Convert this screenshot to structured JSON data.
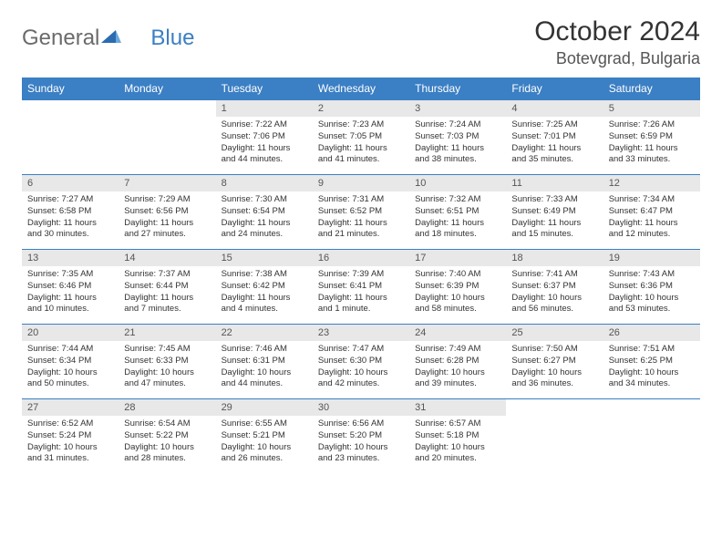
{
  "logo": {
    "general": "General",
    "blue": "Blue"
  },
  "title": "October 2024",
  "location": "Botevgrad, Bulgaria",
  "day_headers": [
    "Sunday",
    "Monday",
    "Tuesday",
    "Wednesday",
    "Thursday",
    "Friday",
    "Saturday"
  ],
  "colors": {
    "header_bg": "#3b7fc4",
    "header_text": "#ffffff",
    "daynum_bg": "#e8e8e8",
    "cell_border": "#3b7fc4",
    "logo_gray": "#6b6b6b",
    "logo_blue": "#3b7fc4"
  },
  "weeks": [
    [
      {
        "empty": true
      },
      {
        "empty": true
      },
      {
        "num": "1",
        "sunrise": "Sunrise: 7:22 AM",
        "sunset": "Sunset: 7:06 PM",
        "daylight": "Daylight: 11 hours and 44 minutes."
      },
      {
        "num": "2",
        "sunrise": "Sunrise: 7:23 AM",
        "sunset": "Sunset: 7:05 PM",
        "daylight": "Daylight: 11 hours and 41 minutes."
      },
      {
        "num": "3",
        "sunrise": "Sunrise: 7:24 AM",
        "sunset": "Sunset: 7:03 PM",
        "daylight": "Daylight: 11 hours and 38 minutes."
      },
      {
        "num": "4",
        "sunrise": "Sunrise: 7:25 AM",
        "sunset": "Sunset: 7:01 PM",
        "daylight": "Daylight: 11 hours and 35 minutes."
      },
      {
        "num": "5",
        "sunrise": "Sunrise: 7:26 AM",
        "sunset": "Sunset: 6:59 PM",
        "daylight": "Daylight: 11 hours and 33 minutes."
      }
    ],
    [
      {
        "num": "6",
        "sunrise": "Sunrise: 7:27 AM",
        "sunset": "Sunset: 6:58 PM",
        "daylight": "Daylight: 11 hours and 30 minutes."
      },
      {
        "num": "7",
        "sunrise": "Sunrise: 7:29 AM",
        "sunset": "Sunset: 6:56 PM",
        "daylight": "Daylight: 11 hours and 27 minutes."
      },
      {
        "num": "8",
        "sunrise": "Sunrise: 7:30 AM",
        "sunset": "Sunset: 6:54 PM",
        "daylight": "Daylight: 11 hours and 24 minutes."
      },
      {
        "num": "9",
        "sunrise": "Sunrise: 7:31 AM",
        "sunset": "Sunset: 6:52 PM",
        "daylight": "Daylight: 11 hours and 21 minutes."
      },
      {
        "num": "10",
        "sunrise": "Sunrise: 7:32 AM",
        "sunset": "Sunset: 6:51 PM",
        "daylight": "Daylight: 11 hours and 18 minutes."
      },
      {
        "num": "11",
        "sunrise": "Sunrise: 7:33 AM",
        "sunset": "Sunset: 6:49 PM",
        "daylight": "Daylight: 11 hours and 15 minutes."
      },
      {
        "num": "12",
        "sunrise": "Sunrise: 7:34 AM",
        "sunset": "Sunset: 6:47 PM",
        "daylight": "Daylight: 11 hours and 12 minutes."
      }
    ],
    [
      {
        "num": "13",
        "sunrise": "Sunrise: 7:35 AM",
        "sunset": "Sunset: 6:46 PM",
        "daylight": "Daylight: 11 hours and 10 minutes."
      },
      {
        "num": "14",
        "sunrise": "Sunrise: 7:37 AM",
        "sunset": "Sunset: 6:44 PM",
        "daylight": "Daylight: 11 hours and 7 minutes."
      },
      {
        "num": "15",
        "sunrise": "Sunrise: 7:38 AM",
        "sunset": "Sunset: 6:42 PM",
        "daylight": "Daylight: 11 hours and 4 minutes."
      },
      {
        "num": "16",
        "sunrise": "Sunrise: 7:39 AM",
        "sunset": "Sunset: 6:41 PM",
        "daylight": "Daylight: 11 hours and 1 minute."
      },
      {
        "num": "17",
        "sunrise": "Sunrise: 7:40 AM",
        "sunset": "Sunset: 6:39 PM",
        "daylight": "Daylight: 10 hours and 58 minutes."
      },
      {
        "num": "18",
        "sunrise": "Sunrise: 7:41 AM",
        "sunset": "Sunset: 6:37 PM",
        "daylight": "Daylight: 10 hours and 56 minutes."
      },
      {
        "num": "19",
        "sunrise": "Sunrise: 7:43 AM",
        "sunset": "Sunset: 6:36 PM",
        "daylight": "Daylight: 10 hours and 53 minutes."
      }
    ],
    [
      {
        "num": "20",
        "sunrise": "Sunrise: 7:44 AM",
        "sunset": "Sunset: 6:34 PM",
        "daylight": "Daylight: 10 hours and 50 minutes."
      },
      {
        "num": "21",
        "sunrise": "Sunrise: 7:45 AM",
        "sunset": "Sunset: 6:33 PM",
        "daylight": "Daylight: 10 hours and 47 minutes."
      },
      {
        "num": "22",
        "sunrise": "Sunrise: 7:46 AM",
        "sunset": "Sunset: 6:31 PM",
        "daylight": "Daylight: 10 hours and 44 minutes."
      },
      {
        "num": "23",
        "sunrise": "Sunrise: 7:47 AM",
        "sunset": "Sunset: 6:30 PM",
        "daylight": "Daylight: 10 hours and 42 minutes."
      },
      {
        "num": "24",
        "sunrise": "Sunrise: 7:49 AM",
        "sunset": "Sunset: 6:28 PM",
        "daylight": "Daylight: 10 hours and 39 minutes."
      },
      {
        "num": "25",
        "sunrise": "Sunrise: 7:50 AM",
        "sunset": "Sunset: 6:27 PM",
        "daylight": "Daylight: 10 hours and 36 minutes."
      },
      {
        "num": "26",
        "sunrise": "Sunrise: 7:51 AM",
        "sunset": "Sunset: 6:25 PM",
        "daylight": "Daylight: 10 hours and 34 minutes."
      }
    ],
    [
      {
        "num": "27",
        "sunrise": "Sunrise: 6:52 AM",
        "sunset": "Sunset: 5:24 PM",
        "daylight": "Daylight: 10 hours and 31 minutes."
      },
      {
        "num": "28",
        "sunrise": "Sunrise: 6:54 AM",
        "sunset": "Sunset: 5:22 PM",
        "daylight": "Daylight: 10 hours and 28 minutes."
      },
      {
        "num": "29",
        "sunrise": "Sunrise: 6:55 AM",
        "sunset": "Sunset: 5:21 PM",
        "daylight": "Daylight: 10 hours and 26 minutes."
      },
      {
        "num": "30",
        "sunrise": "Sunrise: 6:56 AM",
        "sunset": "Sunset: 5:20 PM",
        "daylight": "Daylight: 10 hours and 23 minutes."
      },
      {
        "num": "31",
        "sunrise": "Sunrise: 6:57 AM",
        "sunset": "Sunset: 5:18 PM",
        "daylight": "Daylight: 10 hours and 20 minutes."
      },
      {
        "empty": true
      },
      {
        "empty": true
      }
    ]
  ]
}
